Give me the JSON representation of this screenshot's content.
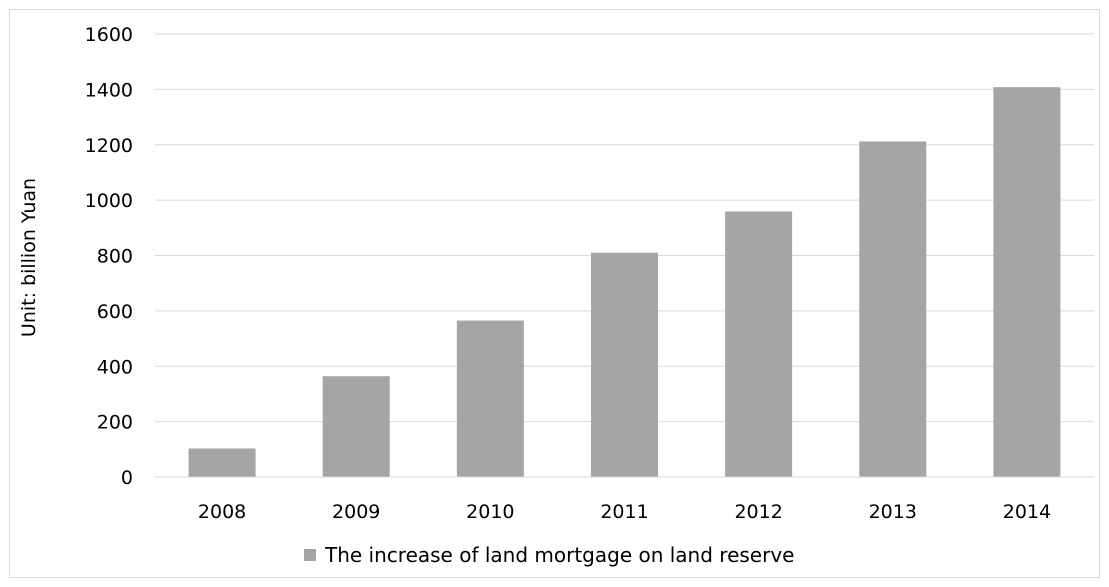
{
  "chart_data": {
    "type": "bar",
    "title": "",
    "xlabel": "",
    "ylabel": "Unit: billion Yuan",
    "categories": [
      "2008",
      "2009",
      "2010",
      "2011",
      "2012",
      "2013",
      "2014"
    ],
    "series": [
      {
        "name": "The increase of land mortgage on land reserve",
        "values": [
          103,
          364,
          565,
          810,
          959,
          1212,
          1408
        ],
        "color": "#a5a5a5"
      }
    ],
    "ylim": [
      0,
      1600
    ],
    "yticks": [
      "0",
      "200",
      "400",
      "600",
      "800",
      "1000",
      "1200",
      "1400",
      "1600"
    ],
    "grid": true,
    "gridline_color": "#d9d9d9",
    "legend_position": "bottom"
  }
}
